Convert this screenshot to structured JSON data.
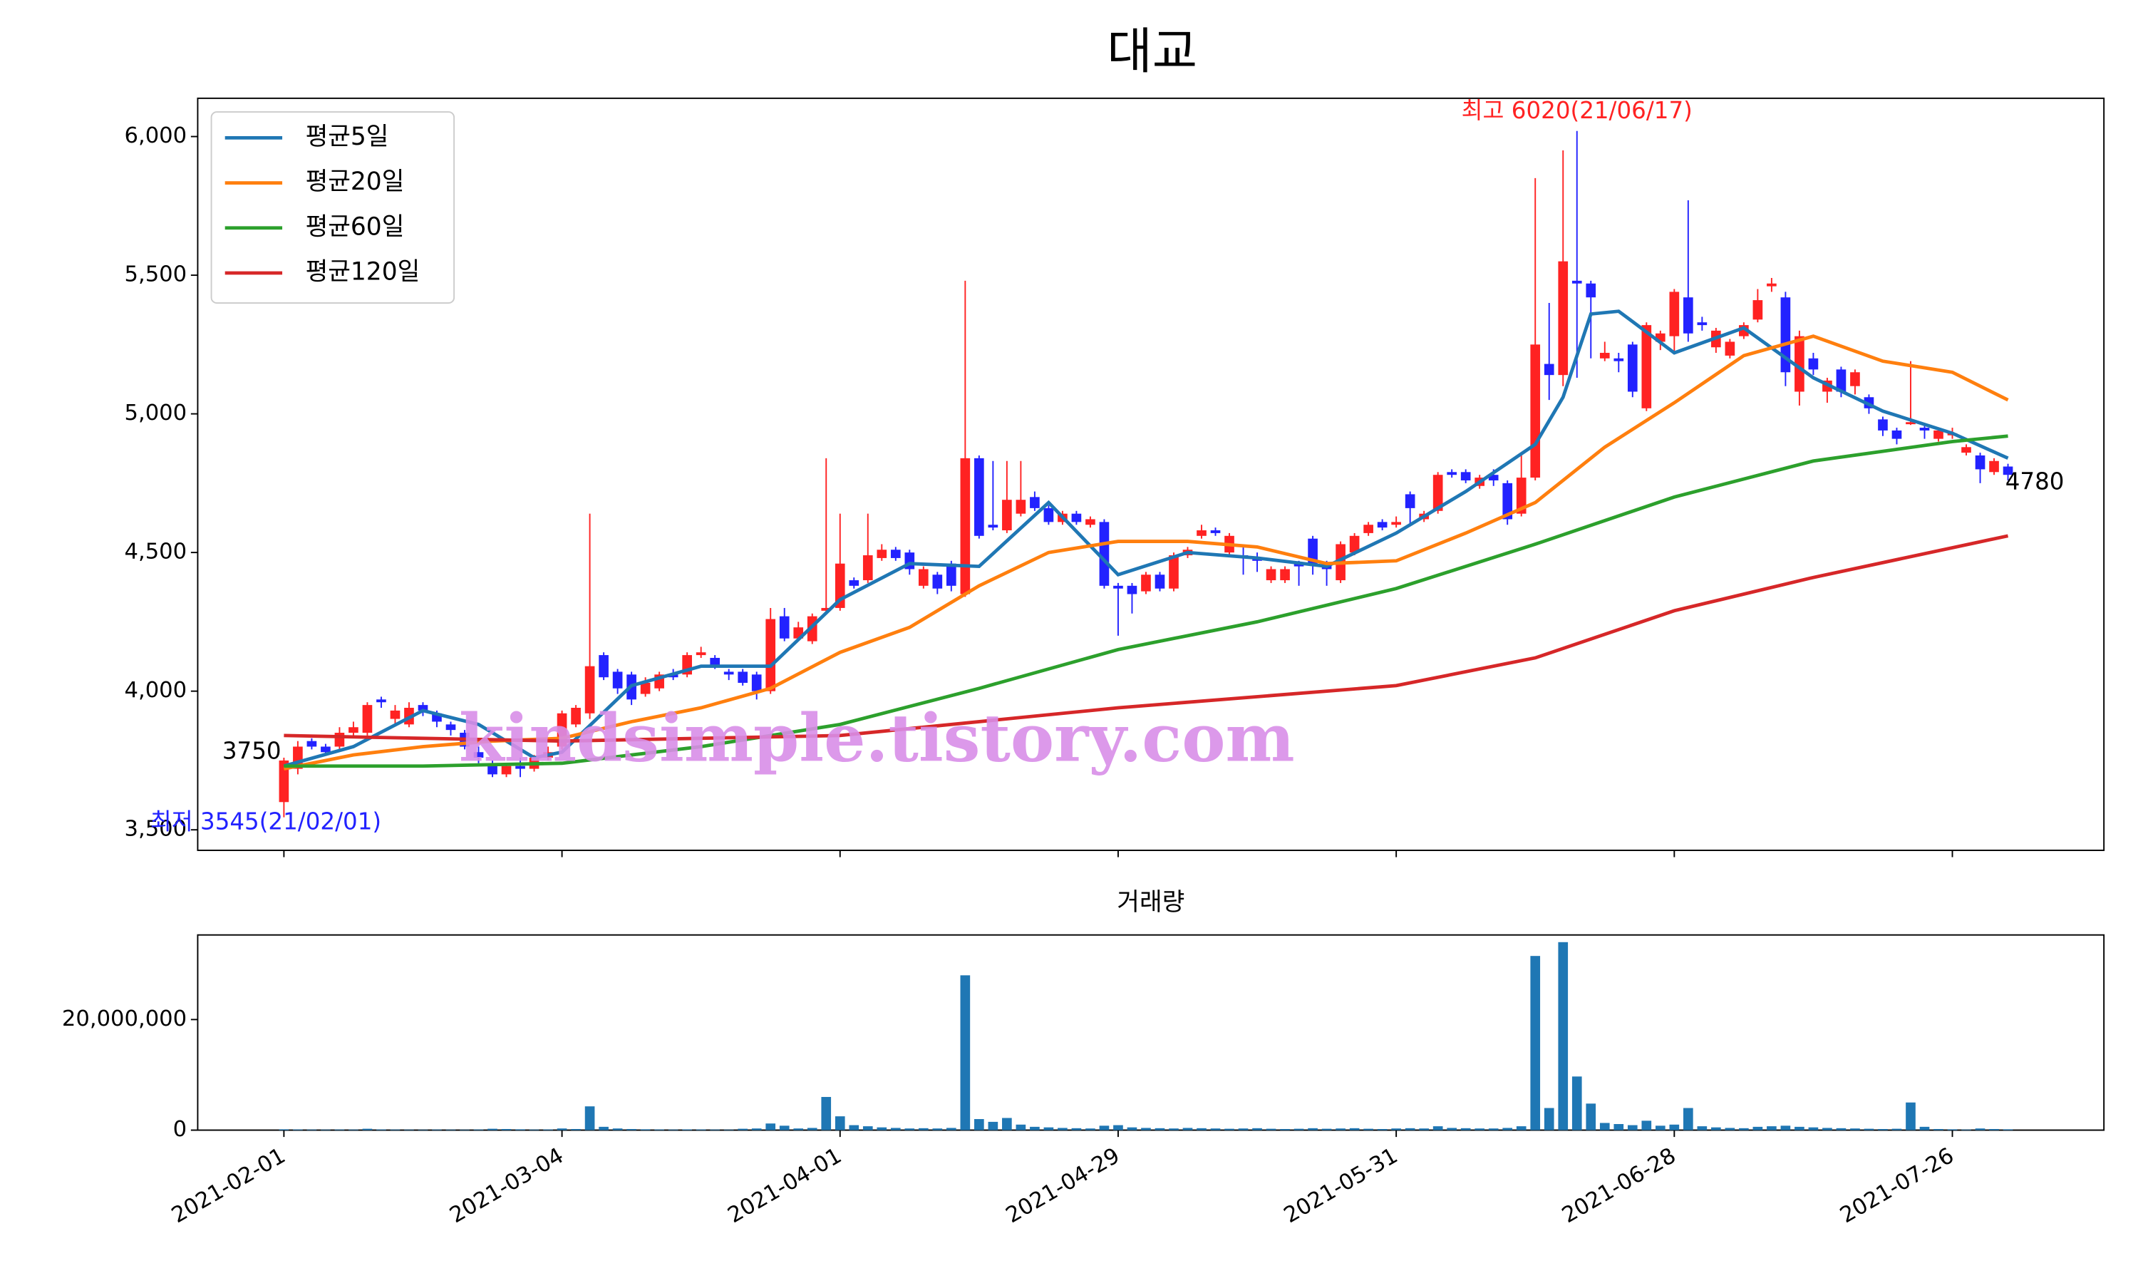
{
  "chart_data": {
    "type": "candlestick",
    "title": "대교",
    "subtitle": "거래량",
    "up_color": "#ff2222",
    "down_color": "#2222ff",
    "volume_color": "#1f77b4",
    "xlim": [
      -6.2,
      130.9
    ],
    "xticks": [
      {
        "value": 0,
        "label": "2021-02-01"
      },
      {
        "value": 20,
        "label": "2021-03-04"
      },
      {
        "value": 40,
        "label": "2021-04-01"
      },
      {
        "value": 60,
        "label": "2021-04-29"
      },
      {
        "value": 80,
        "label": "2021-05-31"
      },
      {
        "value": 100,
        "label": "2021-06-28"
      },
      {
        "value": 120,
        "label": "2021-07-26"
      }
    ],
    "ylim": [
      3426,
      6138
    ],
    "yticks": [
      {
        "value": 3500,
        "label": "3,500"
      },
      {
        "value": 4000,
        "label": "4,000"
      },
      {
        "value": 4500,
        "label": "4,500"
      },
      {
        "value": 5000,
        "label": "5,000"
      },
      {
        "value": 5500,
        "label": "5,500"
      },
      {
        "value": 6000,
        "label": "6,000"
      }
    ],
    "volume_ylim": [
      0,
      35300000
    ],
    "volume_yticks": [
      0,
      {
        "value": 20000000,
        "label": "20,000,000"
      }
    ],
    "open": [
      3600,
      3720,
      3820,
      3800,
      3800,
      3850,
      3850,
      3970,
      3900,
      3880,
      3950,
      3920,
      3880,
      3850,
      3780,
      3740,
      3700,
      3730,
      3720,
      3760,
      3800,
      3880,
      3920,
      4130,
      4070,
      4060,
      3990,
      4010,
      4060,
      4060,
      4130,
      4120,
      4070,
      4070,
      4060,
      4000,
      4270,
      4190,
      4180,
      4290,
      4300,
      4400,
      4400,
      4480,
      4510,
      4500,
      4380,
      4420,
      4460,
      4350,
      4840,
      4600,
      4580,
      4640,
      4700,
      4660,
      4610,
      4640,
      4600,
      4610,
      4380,
      4380,
      4360,
      4420,
      4370,
      4490,
      4560,
      4580,
      4500,
      4490,
      4480,
      4400,
      4400,
      4460,
      4550,
      4460,
      4400,
      4500,
      4570,
      4610,
      4600,
      4710,
      4620,
      4650,
      4790,
      4790,
      4740,
      4780,
      4750,
      4640,
      4770,
      5180,
      5140,
      5480,
      5470,
      5200,
      5200,
      5250,
      5020,
      5260,
      5280,
      5420,
      5330,
      5240,
      5210,
      5280,
      5340,
      5460,
      5420,
      5080,
      5200,
      5080,
      5160,
      5100,
      5060,
      4980,
      4940,
      4970,
      4950,
      4910,
      4930,
      4860,
      4850,
      4790,
      4810
    ],
    "high": [
      3760,
      3820,
      3830,
      3810,
      3870,
      3890,
      3960,
      3980,
      3950,
      3960,
      3960,
      3930,
      3890,
      3860,
      3800,
      3750,
      3740,
      3760,
      3770,
      3800,
      3930,
      3950,
      4640,
      4140,
      4080,
      4070,
      4050,
      4070,
      4080,
      4140,
      4160,
      4130,
      4080,
      4080,
      4070,
      4300,
      4300,
      4250,
      4280,
      4840,
      4640,
      4410,
      4640,
      4530,
      4520,
      4510,
      4450,
      4430,
      4470,
      5480,
      4850,
      4830,
      4830,
      4830,
      4720,
      4670,
      4650,
      4650,
      4630,
      4620,
      4390,
      4390,
      4430,
      4430,
      4500,
      4520,
      4600,
      4590,
      4570,
      4520,
      4500,
      4450,
      4450,
      4470,
      4560,
      4470,
      4540,
      4570,
      4610,
      4620,
      4630,
      4720,
      4650,
      4790,
      4800,
      4800,
      4780,
      4800,
      4760,
      4850,
      5850,
      5400,
      5950,
      6020,
      5480,
      5260,
      5220,
      5260,
      5330,
      5300,
      5450,
      5770,
      5350,
      5310,
      5270,
      5330,
      5450,
      5490,
      5440,
      5300,
      5220,
      5130,
      5170,
      5160,
      5070,
      4990,
      4950,
      5190,
      4960,
      4950,
      4950,
      4890,
      4860,
      4840,
      4820
    ],
    "low": [
      3545,
      3700,
      3790,
      3770,
      3790,
      3840,
      3840,
      3940,
      3880,
      3870,
      3910,
      3870,
      3840,
      3790,
      3740,
      3690,
      3690,
      3690,
      3710,
      3750,
      3790,
      3870,
      3900,
      4040,
      3990,
      3950,
      3980,
      4000,
      4040,
      4050,
      4120,
      4080,
      4040,
      4020,
      3970,
      3990,
      4180,
      4180,
      4170,
      4280,
      4290,
      4370,
      4390,
      4470,
      4470,
      4420,
      4370,
      4350,
      4360,
      4340,
      4550,
      4580,
      4570,
      4630,
      4650,
      4600,
      4600,
      4600,
      4590,
      4370,
      4200,
      4280,
      4350,
      4360,
      4360,
      4480,
      4550,
      4560,
      4490,
      4420,
      4430,
      4390,
      4390,
      4380,
      4420,
      4380,
      4390,
      4490,
      4560,
      4580,
      4590,
      4600,
      4610,
      4640,
      4770,
      4750,
      4730,
      4740,
      4600,
      4630,
      4760,
      5050,
      5100,
      5130,
      5200,
      5190,
      5150,
      5060,
      5010,
      5230,
      5220,
      5260,
      5300,
      5220,
      5200,
      5270,
      5330,
      5440,
      5100,
      5030,
      5140,
      5040,
      5060,
      5070,
      5000,
      4920,
      4890,
      4960,
      4910,
      4900,
      4910,
      4850,
      4750,
      4780,
      4760
    ],
    "close": [
      3750,
      3800,
      3800,
      3780,
      3850,
      3870,
      3950,
      3960,
      3930,
      3940,
      3930,
      3890,
      3860,
      3800,
      3760,
      3700,
      3730,
      3720,
      3760,
      3780,
      3920,
      3940,
      4090,
      4050,
      4010,
      3970,
      4030,
      4060,
      4050,
      4130,
      4140,
      4090,
      4060,
      4030,
      4000,
      4260,
      4190,
      4230,
      4270,
      4300,
      4460,
      4380,
      4490,
      4510,
      4480,
      4440,
      4440,
      4370,
      4380,
      4840,
      4560,
      4590,
      4690,
      4690,
      4660,
      4610,
      4640,
      4610,
      4620,
      4380,
      4370,
      4350,
      4420,
      4370,
      4490,
      4510,
      4580,
      4570,
      4560,
      4480,
      4470,
      4440,
      4440,
      4450,
      4460,
      4440,
      4530,
      4560,
      4600,
      4590,
      4610,
      4660,
      4640,
      4780,
      4780,
      4760,
      4770,
      4760,
      4620,
      4770,
      5250,
      5140,
      5550,
      5470,
      5420,
      5220,
      5190,
      5080,
      5320,
      5290,
      5440,
      5290,
      5320,
      5300,
      5260,
      5320,
      5410,
      5470,
      5150,
      5280,
      5160,
      5120,
      5080,
      5150,
      5020,
      4940,
      4910,
      4970,
      4940,
      4940,
      4930,
      4880,
      4800,
      4830,
      4780
    ],
    "volume": [
      150000,
      120000,
      100000,
      90000,
      110000,
      100000,
      250000,
      120000,
      100000,
      90000,
      80000,
      100000,
      90000,
      80000,
      110000,
      250000,
      200000,
      150000,
      100000,
      120000,
      300000,
      200000,
      4300000,
      600000,
      300000,
      200000,
      150000,
      120000,
      100000,
      130000,
      120000,
      100000,
      90000,
      250000,
      300000,
      1200000,
      800000,
      300000,
      400000,
      6000000,
      2500000,
      900000,
      700000,
      500000,
      400000,
      300000,
      350000,
      300000,
      400000,
      28000000,
      2000000,
      1500000,
      2200000,
      1000000,
      600000,
      500000,
      400000,
      350000,
      300000,
      800000,
      900000,
      500000,
      400000,
      350000,
      300000,
      400000,
      350000,
      300000,
      250000,
      300000,
      350000,
      250000,
      200000,
      250000,
      350000,
      250000,
      300000,
      350000,
      250000,
      200000,
      300000,
      350000,
      300000,
      700000,
      400000,
      350000,
      300000,
      300000,
      400000,
      700000,
      31500000,
      4000000,
      34000000,
      9700000,
      4800000,
      1300000,
      1100000,
      900000,
      1700000,
      800000,
      1000000,
      4000000,
      700000,
      500000,
      400000,
      350000,
      600000,
      700000,
      800000,
      600000,
      500000,
      400000,
      350000,
      300000,
      250000,
      200000,
      250000,
      5000000,
      600000,
      200000,
      150000,
      100000,
      300000,
      200000,
      150000
    ],
    "series": [
      {
        "name": "평균5일",
        "color": "#1f77b4",
        "x": [
          0,
          5,
          10,
          14,
          18,
          20,
          25,
          30,
          35,
          40,
          45,
          50,
          55,
          60,
          65,
          70,
          75,
          80,
          85,
          90,
          92,
          94,
          96,
          100,
          105,
          110,
          115,
          120,
          124
        ],
        "values": [
          3730,
          3800,
          3930,
          3880,
          3760,
          3780,
          4020,
          4090,
          4090,
          4330,
          4460,
          4450,
          4680,
          4420,
          4500,
          4480,
          4450,
          4570,
          4720,
          4890,
          5060,
          5360,
          5370,
          5220,
          5310,
          5130,
          5010,
          4930,
          4840
        ]
      },
      {
        "name": "평균20일",
        "color": "#ff7f0e",
        "x": [
          0,
          5,
          10,
          15,
          20,
          25,
          30,
          35,
          40,
          45,
          50,
          55,
          60,
          65,
          70,
          75,
          80,
          85,
          90,
          95,
          100,
          105,
          110,
          115,
          120,
          124
        ],
        "values": [
          3720,
          3770,
          3800,
          3820,
          3830,
          3890,
          3940,
          4010,
          4140,
          4230,
          4380,
          4500,
          4540,
          4540,
          4520,
          4460,
          4470,
          4570,
          4680,
          4880,
          5040,
          5210,
          5280,
          5190,
          5150,
          5050
        ]
      },
      {
        "name": "평균60일",
        "color": "#2ca02c",
        "x": [
          0,
          10,
          20,
          30,
          40,
          50,
          60,
          70,
          80,
          90,
          100,
          110,
          120,
          124
        ],
        "values": [
          3730,
          3730,
          3740,
          3800,
          3880,
          4010,
          4150,
          4250,
          4370,
          4530,
          4700,
          4830,
          4900,
          4920
        ]
      },
      {
        "name": "평균120일",
        "color": "#d62728",
        "x": [
          0,
          20,
          40,
          60,
          80,
          90,
          100,
          110,
          124
        ],
        "values": [
          3840,
          3820,
          3840,
          3940,
          4020,
          4120,
          4290,
          4410,
          4560
        ]
      }
    ],
    "legend": "upper left",
    "annotations": [
      {
        "text": "최고 6020(21/06/17)",
        "x": 93,
        "y": 6020,
        "color": "#ff2222"
      },
      {
        "text": "최저 3545(21/02/01)",
        "x": 0,
        "y": 3545,
        "color": "#2222ff"
      },
      {
        "text": "3750",
        "x": 0,
        "y": 3750,
        "color": "#000000"
      },
      {
        "text": "4780",
        "x": 124,
        "y": 4780,
        "color": "#000000"
      }
    ],
    "watermark": "kindsimple.tistory.com"
  }
}
